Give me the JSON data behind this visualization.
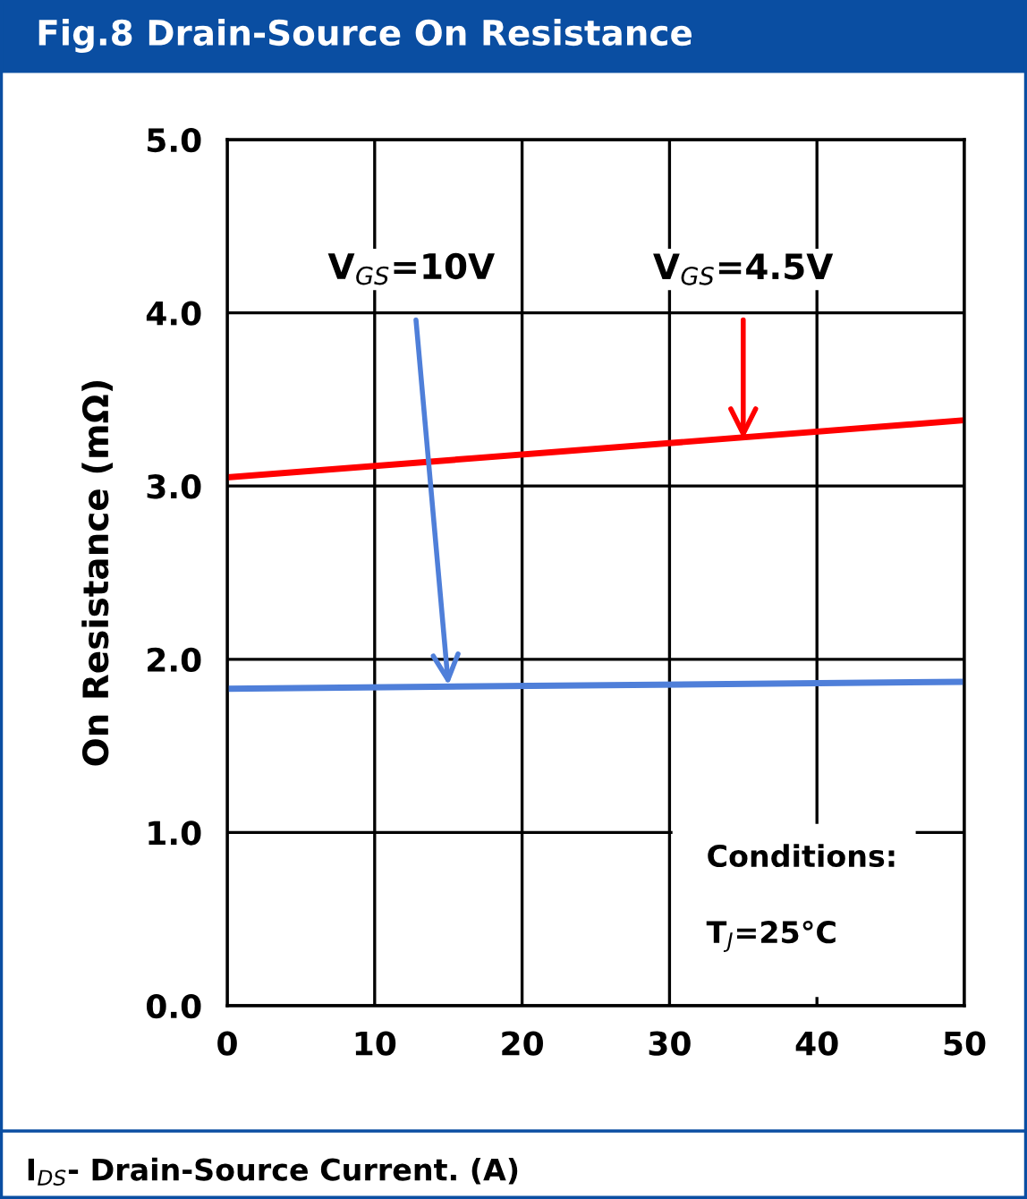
{
  "chart_data": {
    "type": "line",
    "title": "Fig.8 Drain-Source On Resistance",
    "xlabel": "I$_{DS}$- Drain-Source Current. (A)",
    "ylabel": "On Resistance (mΩ)",
    "x": [
      0,
      50
    ],
    "series": [
      {
        "color": "#ff0000",
        "values": [
          3.05,
          3.38
        ]
      },
      {
        "color": "#4f7fd9",
        "values": [
          1.83,
          1.87
        ]
      }
    ],
    "xlim": [
      0,
      50
    ],
    "xticks": [
      0,
      10,
      20,
      30,
      40,
      50
    ],
    "ylim": [
      0,
      5
    ],
    "yticks": [
      {
        "value": 0,
        "label": "0.0"
      },
      {
        "value": 1,
        "label": "1.0"
      },
      {
        "value": 2,
        "label": "2.0"
      },
      {
        "value": 3,
        "label": "3.0"
      },
      {
        "value": 4,
        "label": "4.0"
      },
      {
        "value": 5,
        "label": "5.0"
      }
    ],
    "grid": true,
    "legend": false,
    "marker": "none",
    "line_style": "solid",
    "annotations": [
      {
        "text": "V$_{GS}$=4.5V",
        "x": 35,
        "y": 3.27
      },
      {
        "text": "V$_{GS}$=10V",
        "x": 15,
        "y": 1.85
      },
      "Conditions:",
      "T$_{J}$=25°C"
    ]
  }
}
